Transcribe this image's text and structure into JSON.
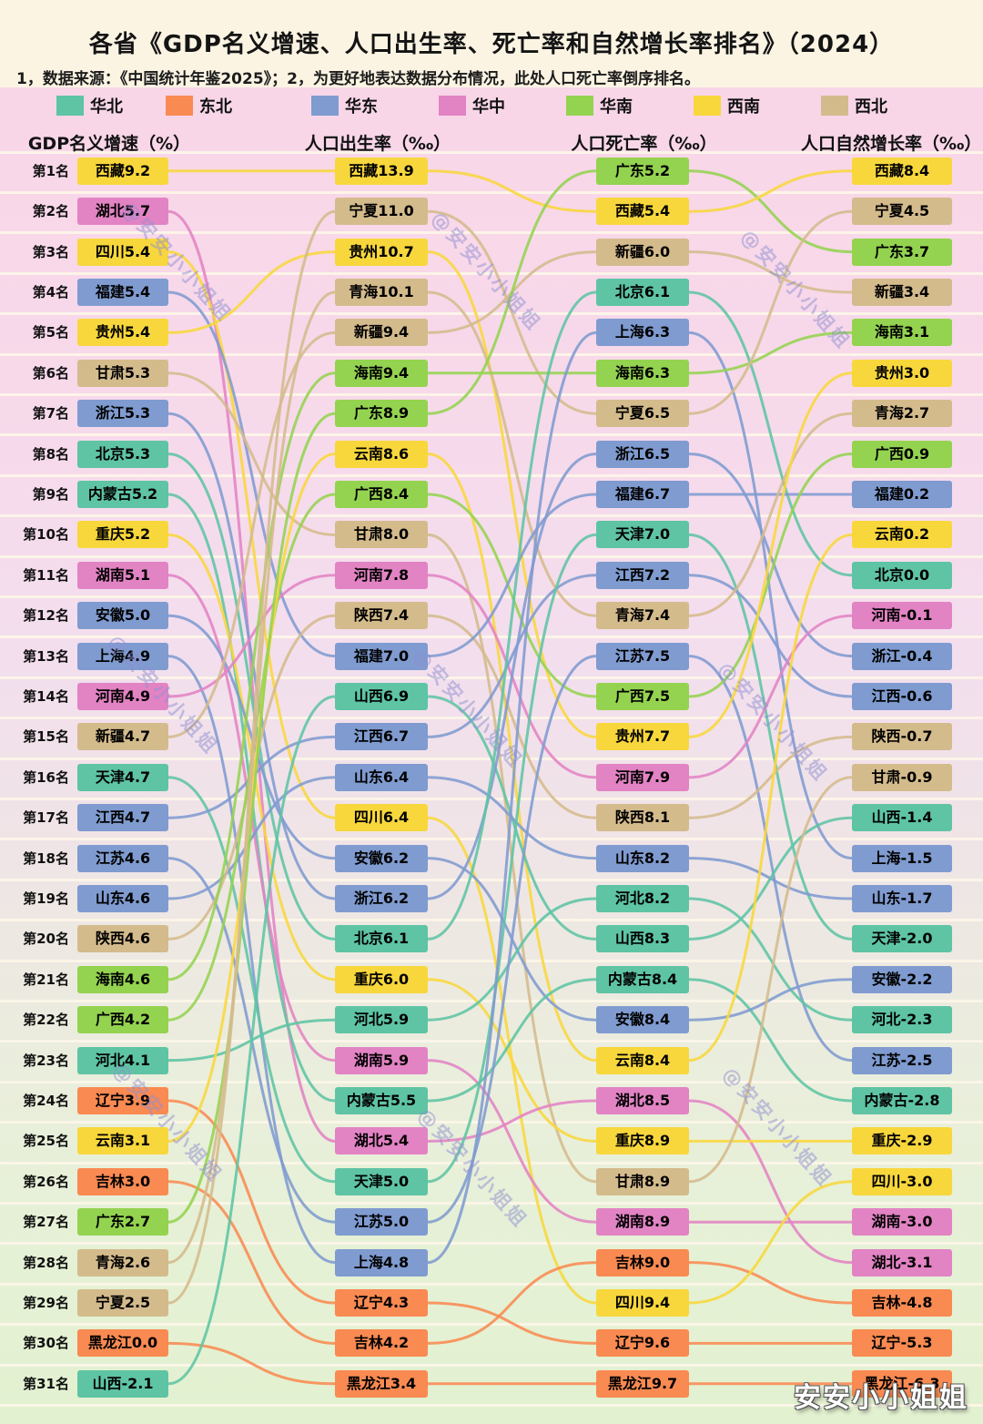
{
  "title": "各省《GDP名义增速、人口出生率、死亡率和自然增长率排名》（2024）",
  "subtitle": "1，数据来源：《中国统计年鉴2025》；2，为更好地表达数据分布情况，此处人口死亡率倒序排名。",
  "watermark": {
    "diagonal": "@安安小小姐姐",
    "corner": "安安小小姐姐"
  },
  "legend": [
    {
      "label": "华北",
      "color": "#5ec4a4"
    },
    {
      "label": "东北",
      "color": "#f98a52"
    },
    {
      "label": "华东",
      "color": "#7f9bd0"
    },
    {
      "label": "华中",
      "color": "#e283c4"
    },
    {
      "label": "华南",
      "color": "#94d350"
    },
    {
      "label": "西南",
      "color": "#f8d73c"
    },
    {
      "label": "西北",
      "color": "#d4bb8c"
    }
  ],
  "chart_data": {
    "type": "bump-ranking",
    "rank_label_prefix": "第",
    "rank_label_suffix": "名",
    "rank_count": 31,
    "region_colors": {
      "华北": "#5ec4a4",
      "东北": "#f98a52",
      "华东": "#7f9bd0",
      "华中": "#e283c4",
      "华南": "#94d350",
      "西南": "#f8d73c",
      "西北": "#d4bb8c"
    },
    "province_regions": {
      "北京": "华北",
      "天津": "华北",
      "河北": "华北",
      "山西": "华北",
      "内蒙古": "华北",
      "辽宁": "东北",
      "吉林": "东北",
      "黑龙江": "东北",
      "上海": "华东",
      "江苏": "华东",
      "浙江": "华东",
      "安徽": "华东",
      "福建": "华东",
      "江西": "华东",
      "山东": "华东",
      "河南": "华中",
      "湖北": "华中",
      "湖南": "华中",
      "广东": "华南",
      "广西": "华南",
      "海南": "华南",
      "重庆": "西南",
      "四川": "西南",
      "贵州": "西南",
      "云南": "西南",
      "西藏": "西南",
      "陕西": "西北",
      "甘肃": "西北",
      "青海": "西北",
      "宁夏": "西北",
      "新疆": "西北"
    },
    "columns": [
      {
        "header": "GDP名义增速（%）",
        "items": [
          {
            "province": "西藏",
            "value": "9.2"
          },
          {
            "province": "湖北",
            "value": "5.7"
          },
          {
            "province": "四川",
            "value": "5.4"
          },
          {
            "province": "福建",
            "value": "5.4"
          },
          {
            "province": "贵州",
            "value": "5.4"
          },
          {
            "province": "甘肃",
            "value": "5.3"
          },
          {
            "province": "浙江",
            "value": "5.3"
          },
          {
            "province": "北京",
            "value": "5.3"
          },
          {
            "province": "内蒙古",
            "value": "5.2"
          },
          {
            "province": "重庆",
            "value": "5.2"
          },
          {
            "province": "湖南",
            "value": "5.1"
          },
          {
            "province": "安徽",
            "value": "5.0"
          },
          {
            "province": "上海",
            "value": "4.9"
          },
          {
            "province": "河南",
            "value": "4.9"
          },
          {
            "province": "新疆",
            "value": "4.7"
          },
          {
            "province": "天津",
            "value": "4.7"
          },
          {
            "province": "江西",
            "value": "4.7"
          },
          {
            "province": "江苏",
            "value": "4.6"
          },
          {
            "province": "山东",
            "value": "4.6"
          },
          {
            "province": "陕西",
            "value": "4.6"
          },
          {
            "province": "海南",
            "value": "4.6"
          },
          {
            "province": "广西",
            "value": "4.2"
          },
          {
            "province": "河北",
            "value": "4.1"
          },
          {
            "province": "辽宁",
            "value": "3.9"
          },
          {
            "province": "云南",
            "value": "3.1"
          },
          {
            "province": "吉林",
            "value": "3.0"
          },
          {
            "province": "广东",
            "value": "2.7"
          },
          {
            "province": "青海",
            "value": "2.6"
          },
          {
            "province": "宁夏",
            "value": "2.5"
          },
          {
            "province": "黑龙江",
            "value": "0.0"
          },
          {
            "province": "山西",
            "value": "-2.1"
          }
        ]
      },
      {
        "header": "人口出生率（‰）",
        "items": [
          {
            "province": "西藏",
            "value": "13.9"
          },
          {
            "province": "宁夏",
            "value": "11.0"
          },
          {
            "province": "贵州",
            "value": "10.7"
          },
          {
            "province": "青海",
            "value": "10.1"
          },
          {
            "province": "新疆",
            "value": "9.4"
          },
          {
            "province": "海南",
            "value": "9.4"
          },
          {
            "province": "广东",
            "value": "8.9"
          },
          {
            "province": "云南",
            "value": "8.6"
          },
          {
            "province": "广西",
            "value": "8.4"
          },
          {
            "province": "甘肃",
            "value": "8.0"
          },
          {
            "province": "河南",
            "value": "7.8"
          },
          {
            "province": "陕西",
            "value": "7.4"
          },
          {
            "province": "福建",
            "value": "7.0"
          },
          {
            "province": "山西",
            "value": "6.9"
          },
          {
            "province": "江西",
            "value": "6.7"
          },
          {
            "province": "山东",
            "value": "6.4"
          },
          {
            "province": "四川",
            "value": "6.4"
          },
          {
            "province": "安徽",
            "value": "6.2"
          },
          {
            "province": "浙江",
            "value": "6.2"
          },
          {
            "province": "北京",
            "value": "6.1"
          },
          {
            "province": "重庆",
            "value": "6.0"
          },
          {
            "province": "河北",
            "value": "5.9"
          },
          {
            "province": "湖南",
            "value": "5.9"
          },
          {
            "province": "内蒙古",
            "value": "5.5"
          },
          {
            "province": "湖北",
            "value": "5.4"
          },
          {
            "province": "天津",
            "value": "5.0"
          },
          {
            "province": "江苏",
            "value": "5.0"
          },
          {
            "province": "上海",
            "value": "4.8"
          },
          {
            "province": "辽宁",
            "value": "4.3"
          },
          {
            "province": "吉林",
            "value": "4.2"
          },
          {
            "province": "黑龙江",
            "value": "3.4"
          }
        ]
      },
      {
        "header": "人口死亡率（‰）",
        "items": [
          {
            "province": "广东",
            "value": "5.2"
          },
          {
            "province": "西藏",
            "value": "5.4"
          },
          {
            "province": "新疆",
            "value": "6.0"
          },
          {
            "province": "北京",
            "value": "6.1"
          },
          {
            "province": "上海",
            "value": "6.3"
          },
          {
            "province": "海南",
            "value": "6.3"
          },
          {
            "province": "宁夏",
            "value": "6.5"
          },
          {
            "province": "浙江",
            "value": "6.5"
          },
          {
            "province": "福建",
            "value": "6.7"
          },
          {
            "province": "天津",
            "value": "7.0"
          },
          {
            "province": "江西",
            "value": "7.2"
          },
          {
            "province": "青海",
            "value": "7.4"
          },
          {
            "province": "江苏",
            "value": "7.5"
          },
          {
            "province": "广西",
            "value": "7.5"
          },
          {
            "province": "贵州",
            "value": "7.7"
          },
          {
            "province": "河南",
            "value": "7.9"
          },
          {
            "province": "陕西",
            "value": "8.1"
          },
          {
            "province": "山东",
            "value": "8.2"
          },
          {
            "province": "河北",
            "value": "8.2"
          },
          {
            "province": "山西",
            "value": "8.3"
          },
          {
            "province": "内蒙古",
            "value": "8.4"
          },
          {
            "province": "安徽",
            "value": "8.4"
          },
          {
            "province": "云南",
            "value": "8.4"
          },
          {
            "province": "湖北",
            "value": "8.5"
          },
          {
            "province": "重庆",
            "value": "8.9"
          },
          {
            "province": "甘肃",
            "value": "8.9"
          },
          {
            "province": "湖南",
            "value": "8.9"
          },
          {
            "province": "吉林",
            "value": "9.0"
          },
          {
            "province": "四川",
            "value": "9.4"
          },
          {
            "province": "辽宁",
            "value": "9.6"
          },
          {
            "province": "黑龙江",
            "value": "9.7"
          }
        ]
      },
      {
        "header": "人口自然增长率（‰）",
        "items": [
          {
            "province": "西藏",
            "value": "8.4"
          },
          {
            "province": "宁夏",
            "value": "4.5"
          },
          {
            "province": "广东",
            "value": "3.7"
          },
          {
            "province": "新疆",
            "value": "3.4"
          },
          {
            "province": "海南",
            "value": "3.1"
          },
          {
            "province": "贵州",
            "value": "3.0"
          },
          {
            "province": "青海",
            "value": "2.7"
          },
          {
            "province": "广西",
            "value": "0.9"
          },
          {
            "province": "福建",
            "value": "0.2"
          },
          {
            "province": "云南",
            "value": "0.2"
          },
          {
            "province": "北京",
            "value": "0.0"
          },
          {
            "province": "河南",
            "value": "-0.1"
          },
          {
            "province": "浙江",
            "value": "-0.4"
          },
          {
            "province": "江西",
            "value": "-0.6"
          },
          {
            "province": "陕西",
            "value": "-0.7"
          },
          {
            "province": "甘肃",
            "value": "-0.9"
          },
          {
            "province": "山西",
            "value": "-1.4"
          },
          {
            "province": "上海",
            "value": "-1.5"
          },
          {
            "province": "山东",
            "value": "-1.7"
          },
          {
            "province": "天津",
            "value": "-2.0"
          },
          {
            "province": "安徽",
            "value": "-2.2"
          },
          {
            "province": "河北",
            "value": "-2.3"
          },
          {
            "province": "江苏",
            "value": "-2.5"
          },
          {
            "province": "内蒙古",
            "value": "-2.8"
          },
          {
            "province": "重庆",
            "value": "-2.9"
          },
          {
            "province": "四川",
            "value": "-3.0"
          },
          {
            "province": "湖南",
            "value": "-3.0"
          },
          {
            "province": "湖北",
            "value": "-3.1"
          },
          {
            "province": "吉林",
            "value": "-4.8"
          },
          {
            "province": "辽宁",
            "value": "-5.3"
          },
          {
            "province": "黑龙江",
            "value": "-6.3"
          }
        ]
      }
    ]
  }
}
